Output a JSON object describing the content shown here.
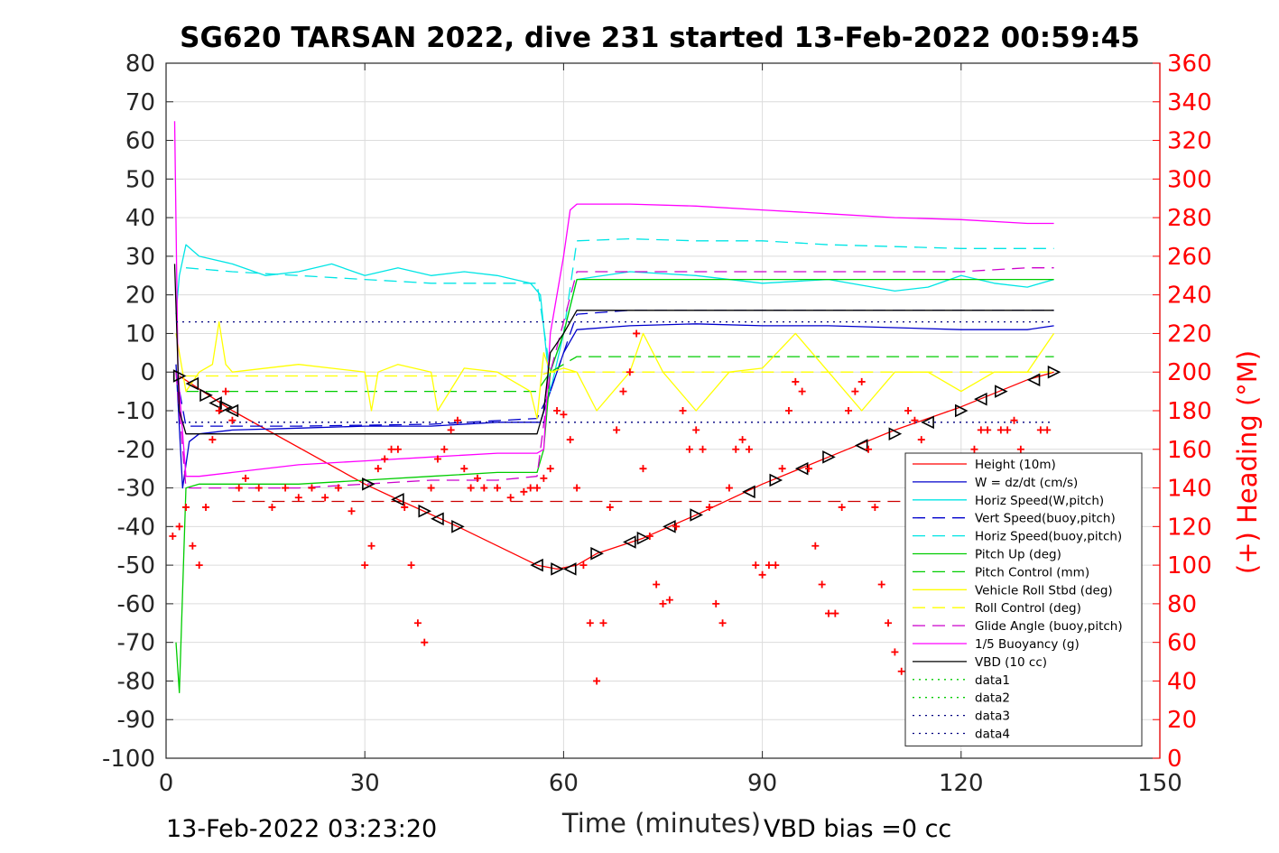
{
  "chart_data": {
    "type": "line",
    "title": "SG620 TARSAN 2022, dive 231 started 13-Feb-2022 00:59:45",
    "xlabel": "Time (minutes)",
    "ylabel": "",
    "ylabel_right": "(+) Heading (°M)",
    "xlim": [
      0,
      150
    ],
    "ylim": [
      -100,
      80
    ],
    "ylim_right": [
      0,
      360
    ],
    "x_ticks": [
      "0",
      "30",
      "60",
      "90",
      "120",
      "150"
    ],
    "y_ticks": [
      "80",
      "70",
      "60",
      "50",
      "40",
      "30",
      "20",
      "10",
      "0",
      "-10",
      "-20",
      "-30",
      "-40",
      "-50",
      "-60",
      "-70",
      "-80",
      "-90",
      "-100"
    ],
    "y_right_ticks": [
      "360",
      "340",
      "320",
      "300",
      "280",
      "260",
      "240",
      "220",
      "200",
      "180",
      "160",
      "140",
      "120",
      "100",
      "80",
      "60",
      "40",
      "20",
      "0"
    ],
    "grid": true,
    "legend_position": "bottom-right",
    "footer_left": "13-Feb-2022 03:23:20",
    "footer_right": "VBD bias =0 cc",
    "colors": {
      "red": "#ff0000",
      "blue": "#0000cc",
      "cyan": "#00e5e5",
      "green": "#00cc00",
      "yellow": "#ffff00",
      "magenta": "#cc00cc",
      "violet": "#ff00ff",
      "black": "#000000",
      "navy": "#000080"
    },
    "series": [
      {
        "name": "Height (10m)",
        "color": "#ff0000",
        "dash": "solid",
        "x": [
          2,
          10,
          30,
          35,
          44,
          56,
          59,
          62,
          65,
          72,
          80,
          90,
          100,
          110,
          120,
          130,
          134
        ],
        "y": [
          -1,
          -10,
          -29,
          -33,
          -40,
          -50,
          -51,
          -50,
          -47,
          -43,
          -37,
          -29,
          -22,
          -15,
          -9,
          -2,
          0
        ]
      },
      {
        "name": "W = dz/dt (cm/s)",
        "color": "#0000cc",
        "dash": "solid",
        "x": [
          1.5,
          2.5,
          3.5,
          5,
          10,
          20,
          30,
          40,
          50,
          55,
          56.5,
          58,
          60,
          62,
          70,
          80,
          90,
          100,
          110,
          120,
          130,
          134
        ],
        "y": [
          2,
          -30,
          -18,
          -16,
          -15,
          -14.5,
          -14,
          -14,
          -13,
          -13,
          -13,
          -5,
          5,
          11,
          12,
          12.5,
          12,
          12,
          11.5,
          11,
          11,
          12
        ]
      },
      {
        "name": "Horiz Speed(W,pitch)",
        "color": "#00e5e5",
        "dash": "solid",
        "x": [
          1.5,
          2,
          3,
          5,
          10,
          15,
          20,
          25,
          30,
          35,
          40,
          45,
          50,
          55,
          56.5,
          58,
          60,
          62,
          70,
          80,
          90,
          100,
          110,
          115,
          120,
          125,
          130,
          134
        ],
        "y": [
          15,
          25,
          33,
          30,
          28,
          25,
          26,
          28,
          25,
          27,
          25,
          26,
          25,
          23,
          20,
          -5,
          10,
          24,
          26,
          25,
          23,
          24,
          21,
          22,
          25,
          23,
          22,
          24
        ]
      },
      {
        "name": "Vert Speed(buoy,pitch)",
        "color": "#0000cc",
        "dash": "dashed",
        "x": [
          1.5,
          3,
          5,
          20,
          40,
          56,
          58,
          60,
          62,
          70,
          80,
          90,
          100,
          110,
          120,
          130,
          134
        ],
        "y": [
          0,
          -14,
          -14,
          -14,
          -13.5,
          -12,
          -5,
          5,
          15,
          16,
          16,
          16,
          16,
          16,
          16,
          16,
          16
        ]
      },
      {
        "name": "Horiz Speed(buoy,pitch)",
        "color": "#00e5e5",
        "dash": "dashed",
        "x": [
          3,
          10,
          20,
          30,
          40,
          50,
          56,
          58,
          60,
          62,
          70,
          80,
          90,
          100,
          110,
          120,
          130,
          134
        ],
        "y": [
          27,
          26,
          25,
          24,
          23,
          23,
          23,
          0,
          10,
          34,
          34.5,
          34,
          34,
          33,
          32.5,
          32,
          32,
          32
        ]
      },
      {
        "name": "Pitch Up (deg)",
        "color": "#00cc00",
        "dash": "solid",
        "x": [
          1.5,
          2,
          3,
          5,
          10,
          20,
          30,
          40,
          50,
          56,
          57,
          58,
          60,
          62,
          70,
          80,
          90,
          100,
          110,
          120,
          130,
          134
        ],
        "y": [
          -70,
          -83,
          -30,
          -29,
          -29,
          -29,
          -28,
          -27,
          -26,
          -26,
          -20,
          0,
          10,
          24,
          24,
          24,
          24,
          24,
          24,
          24,
          24,
          24
        ]
      },
      {
        "name": "Pitch Control (mm)",
        "color": "#00cc00",
        "dash": "dashed",
        "x": [
          3,
          10,
          20,
          30,
          40,
          50,
          56,
          58,
          62,
          70,
          80,
          90,
          100,
          110,
          120,
          130,
          134
        ],
        "y": [
          -5,
          -5,
          -5,
          -5,
          -5,
          -5,
          -5,
          0,
          4,
          4,
          4,
          4,
          4,
          4,
          4,
          4,
          4
        ]
      },
      {
        "name": "Vehicle Roll Stbd (deg)",
        "color": "#ffff00",
        "dash": "solid",
        "x": [
          1.5,
          3,
          5,
          7,
          8,
          9,
          10,
          20,
          30,
          31,
          32,
          35,
          40,
          41,
          45,
          50,
          55,
          56,
          57,
          58,
          60,
          62,
          65,
          70,
          72,
          75,
          80,
          85,
          90,
          95,
          100,
          105,
          110,
          115,
          120,
          125,
          130,
          134
        ],
        "y": [
          10,
          -5,
          0,
          2,
          13,
          2,
          0,
          2,
          0,
          -10,
          0,
          2,
          0,
          -10,
          1,
          0,
          -5,
          -12,
          5,
          0,
          1,
          0,
          -10,
          0,
          10,
          0,
          -10,
          0,
          1,
          10,
          0,
          -10,
          0,
          0,
          -5,
          0,
          0,
          10
        ]
      },
      {
        "name": "Roll Control (deg)",
        "color": "#ffff00",
        "dash": "dashed",
        "x": [
          3,
          10,
          20,
          30,
          40,
          50,
          56,
          58,
          62,
          70,
          80,
          90,
          100,
          110,
          120,
          130,
          134
        ],
        "y": [
          -1,
          -1,
          -1,
          -1,
          -1,
          -1,
          -1,
          0,
          0,
          0,
          0,
          0,
          0,
          0,
          0,
          0,
          0
        ]
      },
      {
        "name": "Glide Angle (buoy,pitch)",
        "color": "#cc00cc",
        "dash": "dashed",
        "x": [
          1.5,
          3,
          10,
          20,
          30,
          40,
          50,
          56,
          58,
          62,
          70,
          80,
          90,
          100,
          110,
          120,
          130,
          134
        ],
        "y": [
          0,
          -30,
          -30,
          -30,
          -29,
          -28,
          -28,
          -27,
          0,
          26,
          26,
          26,
          26,
          26,
          26,
          26,
          27,
          27
        ]
      },
      {
        "name": "1/5 Buoyancy (g)",
        "color": "#ff00ff",
        "dash": "solid",
        "x": [
          1.3,
          1.8,
          3,
          5,
          10,
          20,
          30,
          40,
          50,
          56,
          57,
          58,
          60,
          61,
          62,
          70,
          80,
          90,
          100,
          110,
          120,
          130,
          134
        ],
        "y": [
          65,
          0,
          -27,
          -27,
          -26,
          -24,
          -23,
          -22,
          -21,
          -21,
          -20,
          10,
          30,
          42,
          43.5,
          43.5,
          43,
          42,
          41,
          40,
          39.5,
          38.5,
          38.5
        ]
      },
      {
        "name": "VBD (10 cc)",
        "color": "#000000",
        "dash": "solid",
        "x": [
          1.3,
          2,
          3,
          10,
          20,
          30,
          40,
          50,
          56,
          57,
          58,
          60,
          62,
          70,
          80,
          90,
          100,
          110,
          120,
          130,
          134
        ],
        "y": [
          28,
          -10,
          -16,
          -16,
          -16,
          -16,
          -16,
          -16,
          -16,
          -10,
          5,
          10,
          16,
          16,
          16,
          16,
          16,
          16,
          16,
          16,
          16
        ]
      },
      {
        "name": "data1",
        "color": "#00cc00",
        "dash": "dotted",
        "x": [],
        "y": []
      },
      {
        "name": "data2",
        "color": "#00cc00",
        "dash": "dotted",
        "x": [],
        "y": []
      },
      {
        "name": "data3",
        "color": "#000080",
        "dash": "dotted",
        "x": [
          1.5,
          134
        ],
        "y": [
          13,
          13
        ]
      },
      {
        "name": "data4",
        "color": "#000080",
        "dash": "dotted",
        "x": [
          1.5,
          134
        ],
        "y": [
          -13,
          -13
        ]
      }
    ],
    "extra_lines": [
      {
        "color": "#cc0000",
        "dash": "dashed",
        "x": [
          10,
          134
        ],
        "y": [
          -33.5,
          -33.5
        ]
      }
    ],
    "height_markers": {
      "series": "Height (10m)",
      "x": [
        2,
        4,
        6,
        7.5,
        9,
        10,
        30.5,
        35,
        39,
        41,
        44,
        56,
        59,
        61,
        65,
        70,
        72,
        76,
        80,
        88,
        92,
        96,
        100,
        105,
        110,
        115,
        120,
        123,
        126,
        131,
        134
      ],
      "y": [
        -1,
        -3,
        -6,
        -8,
        -9,
        -10,
        -29,
        -33,
        -36,
        -38,
        -40,
        -50,
        -51,
        -51,
        -47,
        -44,
        -43,
        -40,
        -37,
        -31,
        -28,
        -25,
        -22,
        -19,
        -16,
        -13,
        -10,
        -7,
        -5,
        -2,
        0
      ]
    },
    "heading": {
      "name": "Heading",
      "axis": "right",
      "marker": "+",
      "color": "#ff0000",
      "x": [
        1,
        2,
        3,
        4,
        5,
        6,
        7,
        8,
        9,
        10,
        11,
        12,
        14,
        16,
        18,
        20,
        22,
        24,
        26,
        28,
        30,
        31,
        32,
        33,
        34,
        35,
        36,
        37,
        38,
        39,
        40,
        41,
        42,
        43,
        44,
        45,
        46,
        47,
        48,
        50,
        52,
        54,
        55,
        56,
        57,
        58,
        59,
        60,
        61,
        62,
        63,
        64,
        65,
        66,
        67,
        68,
        69,
        70,
        71,
        72,
        73,
        74,
        75,
        76,
        77,
        78,
        79,
        80,
        81,
        82,
        83,
        84,
        85,
        86,
        87,
        88,
        89,
        90,
        91,
        92,
        93,
        94,
        95,
        96,
        97,
        98,
        99,
        100,
        101,
        102,
        103,
        104,
        105,
        106,
        107,
        108,
        109,
        110,
        111,
        112,
        113,
        114,
        115,
        116,
        117,
        118,
        119,
        120,
        121,
        122,
        123,
        124,
        125,
        126,
        127,
        128,
        129,
        130,
        131,
        132,
        133
      ],
      "y": [
        115,
        120,
        130,
        110,
        100,
        130,
        165,
        180,
        190,
        175,
        140,
        145,
        140,
        130,
        140,
        135,
        140,
        135,
        140,
        128,
        100,
        110,
        150,
        155,
        160,
        160,
        130,
        100,
        70,
        60,
        140,
        155,
        160,
        170,
        175,
        150,
        140,
        145,
        140,
        140,
        135,
        138,
        140,
        140,
        145,
        150,
        180,
        178,
        165,
        140,
        100,
        70,
        40,
        70,
        130,
        170,
        190,
        200,
        220,
        150,
        115,
        90,
        80,
        82,
        120,
        180,
        160,
        170,
        160,
        130,
        80,
        70,
        140,
        160,
        165,
        160,
        100,
        95,
        100,
        100,
        150,
        180,
        195,
        190,
        150,
        110,
        90,
        75,
        75,
        130,
        180,
        190,
        195,
        160,
        130,
        90,
        70,
        55,
        45,
        180,
        175,
        165,
        120,
        110,
        80,
        60,
        50,
        60,
        150,
        160,
        170,
        170,
        150,
        170,
        170,
        175,
        160,
        150,
        150,
        170,
        170
      ]
    }
  }
}
